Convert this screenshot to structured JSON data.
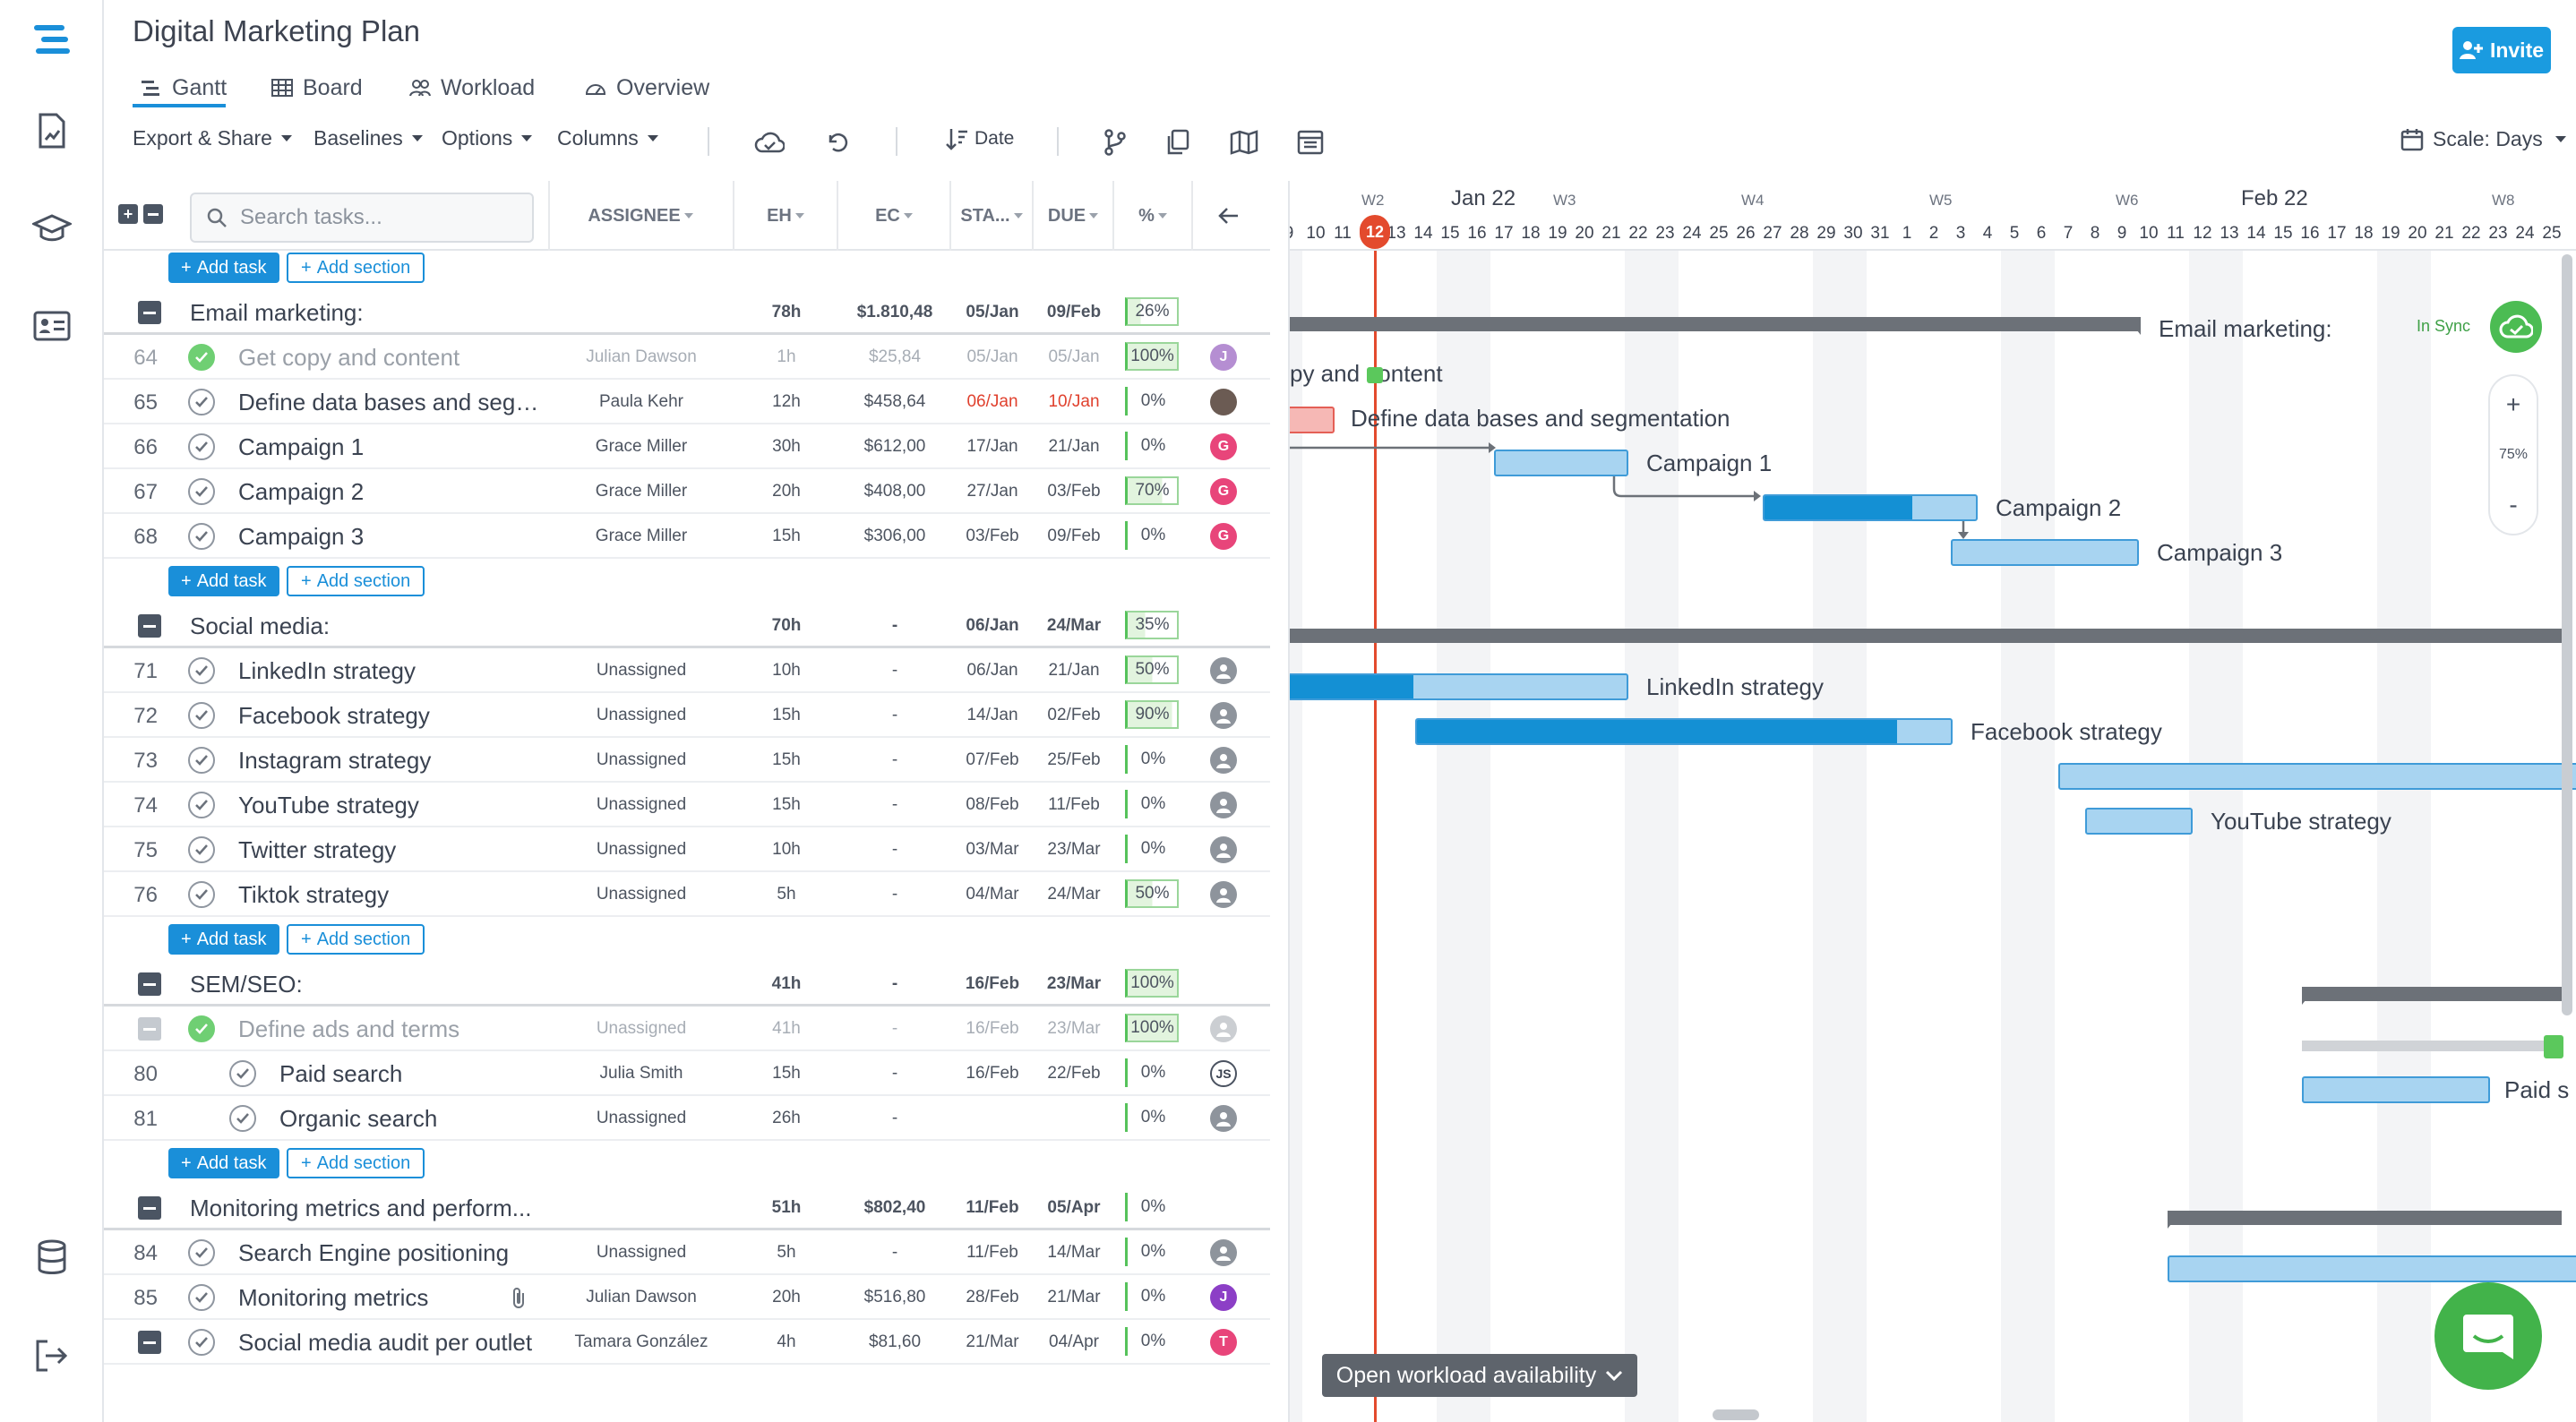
{
  "app": {
    "title": "Digital Marketing Plan",
    "invite_label": "Invite"
  },
  "tabs": [
    {
      "label": "Gantt",
      "icon": "gantt-icon",
      "active": true
    },
    {
      "label": "Board",
      "icon": "board-icon"
    },
    {
      "label": "Workload",
      "icon": "workload-icon"
    },
    {
      "label": "Overview",
      "icon": "overview-icon"
    }
  ],
  "toolbar": {
    "export_label": "Export & Share",
    "baselines_label": "Baselines",
    "options_label": "Options",
    "columns_label": "Columns",
    "sort_label": "Date",
    "scale_label": "Scale: Days"
  },
  "search": {
    "placeholder": "Search tasks..."
  },
  "columns": {
    "assignee": "ASSIGNEE",
    "eh": "EH",
    "ec": "EC",
    "start": "STA...",
    "due": "DUE",
    "pct": "%"
  },
  "add_task_label": "Add task",
  "add_section_label": "Add section",
  "sections": [
    {
      "name": "Email marketing:",
      "eh": "78h",
      "ec": "$1.810,48",
      "start": "05/Jan",
      "due": "09/Feb",
      "pct": "26%",
      "tasks": [
        {
          "num": "64",
          "name": "Get copy and content",
          "assignee": "Julian Dawson",
          "eh": "1h",
          "ec": "$25,84",
          "start": "05/Jan",
          "due": "05/Jan",
          "pct": "100%",
          "avatar": "J",
          "avatar_color": "#b58ed2",
          "done": true
        },
        {
          "num": "65",
          "name": "Define data bases and segm...",
          "assignee": "Paula Kehr",
          "eh": "12h",
          "ec": "$458,64",
          "start": "06/Jan",
          "due": "10/Jan",
          "pct": "0%",
          "avatar": "",
          "avatar_color": "#6b5b53",
          "late": true
        },
        {
          "num": "66",
          "name": "Campaign 1",
          "assignee": "Grace Miller",
          "eh": "30h",
          "ec": "$612,00",
          "start": "17/Jan",
          "due": "21/Jan",
          "pct": "0%",
          "avatar": "G",
          "avatar_color": "#e8457a"
        },
        {
          "num": "67",
          "name": "Campaign 2",
          "assignee": "Grace Miller",
          "eh": "20h",
          "ec": "$408,00",
          "start": "27/Jan",
          "due": "03/Feb",
          "pct": "70%",
          "avatar": "G",
          "avatar_color": "#e8457a"
        },
        {
          "num": "68",
          "name": "Campaign 3",
          "assignee": "Grace Miller",
          "eh": "15h",
          "ec": "$306,00",
          "start": "03/Feb",
          "due": "09/Feb",
          "pct": "0%",
          "avatar": "G",
          "avatar_color": "#e8457a"
        }
      ]
    },
    {
      "name": "Social media:",
      "eh": "70h",
      "ec": "-",
      "start": "06/Jan",
      "due": "24/Mar",
      "pct": "35%",
      "tasks": [
        {
          "num": "71",
          "name": "LinkedIn strategy",
          "assignee": "Unassigned",
          "eh": "10h",
          "ec": "-",
          "start": "06/Jan",
          "due": "21/Jan",
          "pct": "50%"
        },
        {
          "num": "72",
          "name": "Facebook strategy",
          "assignee": "Unassigned",
          "eh": "15h",
          "ec": "-",
          "start": "14/Jan",
          "due": "02/Feb",
          "pct": "90%"
        },
        {
          "num": "73",
          "name": "Instagram strategy",
          "assignee": "Unassigned",
          "eh": "15h",
          "ec": "-",
          "start": "07/Feb",
          "due": "25/Feb",
          "pct": "0%"
        },
        {
          "num": "74",
          "name": "YouTube strategy",
          "assignee": "Unassigned",
          "eh": "15h",
          "ec": "-",
          "start": "08/Feb",
          "due": "11/Feb",
          "pct": "0%"
        },
        {
          "num": "75",
          "name": "Twitter strategy",
          "assignee": "Unassigned",
          "eh": "10h",
          "ec": "-",
          "start": "03/Mar",
          "due": "23/Mar",
          "pct": "0%"
        },
        {
          "num": "76",
          "name": "Tiktok strategy",
          "assignee": "Unassigned",
          "eh": "5h",
          "ec": "-",
          "start": "04/Mar",
          "due": "24/Mar",
          "pct": "50%"
        }
      ]
    },
    {
      "name": "SEM/SEO:",
      "eh": "41h",
      "ec": "-",
      "start": "16/Feb",
      "due": "23/Mar",
      "pct": "100%",
      "tasks": [
        {
          "num": "",
          "name": "Define ads and terms",
          "assignee": "Unassigned",
          "eh": "41h",
          "ec": "-",
          "start": "16/Feb",
          "due": "23/Mar",
          "pct": "100%",
          "done": true,
          "subsection": true
        },
        {
          "num": "80",
          "name": "Paid search",
          "assignee": "Julia Smith",
          "eh": "15h",
          "ec": "-",
          "start": "16/Feb",
          "due": "22/Feb",
          "pct": "0%",
          "avatar": "JS",
          "avatar_color": "#ffffff",
          "indent": true
        },
        {
          "num": "81",
          "name": "Organic search",
          "assignee": "Unassigned",
          "eh": "26h",
          "ec": "-",
          "start": "",
          "due": "",
          "pct": "0%",
          "indent": true
        }
      ]
    },
    {
      "name": "Monitoring metrics and perform...",
      "eh": "51h",
      "ec": "$802,40",
      "start": "11/Feb",
      "due": "05/Apr",
      "pct": "0%",
      "tasks": [
        {
          "num": "84",
          "name": "Search Engine positioning",
          "assignee": "Unassigned",
          "eh": "5h",
          "ec": "-",
          "start": "11/Feb",
          "due": "14/Mar",
          "pct": "0%"
        },
        {
          "num": "85",
          "name": "Monitoring metrics",
          "assignee": "Julian Dawson",
          "eh": "20h",
          "ec": "$516,80",
          "start": "28/Feb",
          "due": "21/Mar",
          "pct": "0%",
          "avatar": "J",
          "avatar_color": "#8c3fc6",
          "attachment": true
        },
        {
          "num": "",
          "name": "Social media audit per outlet",
          "assignee": "Tamara González",
          "eh": "4h",
          "ec": "$81,60",
          "start": "21/Mar",
          "due": "04/Apr",
          "pct": "0%",
          "avatar": "T",
          "avatar_color": "#e8457a",
          "subsection": true
        }
      ]
    }
  ],
  "timeline": {
    "months": [
      {
        "label": "Jan 22"
      },
      {
        "label": "Feb 22"
      }
    ],
    "weeks": [
      "W2",
      "W3",
      "W4",
      "W5",
      "W6",
      "W8"
    ],
    "days": [
      "9",
      "10",
      "11",
      "12",
      "13",
      "14",
      "15",
      "16",
      "17",
      "18",
      "19",
      "20",
      "21",
      "22",
      "23",
      "24",
      "25",
      "26",
      "27",
      "28",
      "29",
      "30",
      "31",
      "1",
      "2",
      "3",
      "4",
      "5",
      "6",
      "7",
      "8",
      "9",
      "10",
      "11",
      "12",
      "13",
      "14",
      "15",
      "16",
      "17",
      "18",
      "19",
      "20",
      "21",
      "22",
      "23",
      "24",
      "25"
    ],
    "today": "12"
  },
  "gantt_labels": {
    "email_section": "Email marketing:",
    "get_copy": "py and content",
    "define_db": "Define data bases and segmentation",
    "campaign1": "Campaign 1",
    "campaign2": "Campaign 2",
    "campaign3": "Campaign 3",
    "linkedin": "LinkedIn strategy",
    "facebook": "Facebook strategy",
    "youtube": "YouTube strategy",
    "paid": "Paid s"
  },
  "sync_label": "In Sync",
  "zoom_level": "75%",
  "workload_button": "Open workload availability"
}
